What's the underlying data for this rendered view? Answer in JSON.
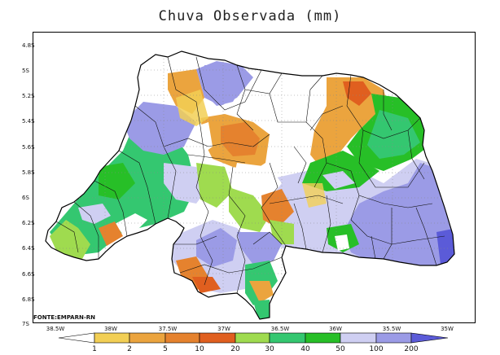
{
  "title": "Chuva Observada (mm)",
  "source": "FONTE:EMPARN-RN",
  "y_axis_labels": [
    "4.8S",
    "5S",
    "5.2S",
    "5.4S",
    "5.6S",
    "5.8S",
    "6S",
    "6.2S",
    "6.4S",
    "6.6S",
    "6.8S",
    "7S"
  ],
  "x_axis_labels": [
    "38.5W",
    "38W",
    "37.5W",
    "37W",
    "36.5W",
    "36W",
    "35.5W",
    "35W"
  ],
  "legend": {
    "values": [
      "1",
      "2",
      "5",
      "10",
      "20",
      "30",
      "40",
      "50",
      "100",
      "200"
    ],
    "colors": {
      "below_1": "#ffffff",
      "1_2": "#f2cf55",
      "2_5": "#eba43e",
      "5_10": "#e5822e",
      "10_20": "#e05f1f",
      "20_30": "#9fdb4f",
      "30_40": "#34c770",
      "40_50": "#27bf27",
      "50_100": "#cfcff2",
      "100_200": "#9b9be6",
      "above_200": "#5b5bd8"
    }
  }
}
